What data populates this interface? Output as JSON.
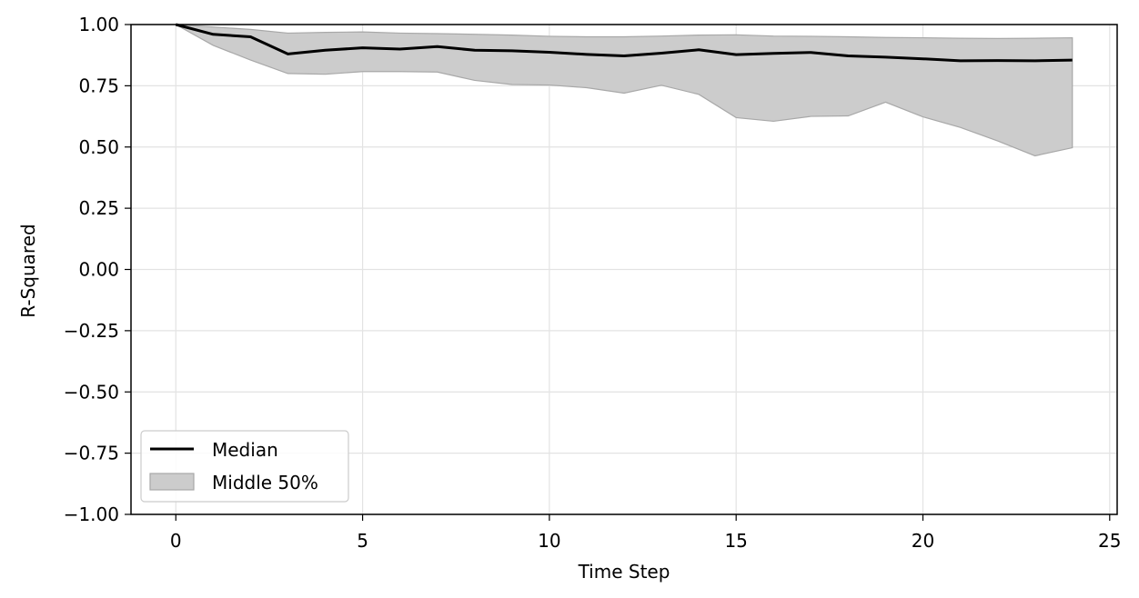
{
  "chart_data": {
    "type": "line",
    "title": "",
    "xlabel": "Time Step",
    "ylabel": "R-Squared",
    "xlim": [
      -1.2,
      25.2
    ],
    "ylim": [
      -1.0,
      1.0
    ],
    "xticks": [
      0,
      5,
      10,
      15,
      20,
      25
    ],
    "xtick_labels": [
      "0",
      "5",
      "10",
      "15",
      "20",
      "25"
    ],
    "yticks": [
      -1.0,
      -0.75,
      -0.5,
      -0.25,
      0.0,
      0.25,
      0.5,
      0.75,
      1.0
    ],
    "ytick_labels": [
      "−1.00",
      "−0.75",
      "−0.50",
      "−0.25",
      "0.00",
      "0.25",
      "0.50",
      "0.75",
      "1.00"
    ],
    "grid": true,
    "legend_position": "lower-left",
    "x": [
      0,
      1,
      2,
      3,
      4,
      5,
      6,
      7,
      8,
      9,
      10,
      11,
      12,
      13,
      14,
      15,
      16,
      17,
      18,
      19,
      20,
      21,
      22,
      23,
      24
    ],
    "series": [
      {
        "name": "Median",
        "kind": "line",
        "color": "#000000",
        "values": [
          1.0,
          0.96,
          0.95,
          0.88,
          0.895,
          0.905,
          0.9,
          0.91,
          0.895,
          0.893,
          0.887,
          0.878,
          0.872,
          0.883,
          0.897,
          0.877,
          0.882,
          0.886,
          0.872,
          0.867,
          0.86,
          0.852,
          0.853,
          0.852,
          0.855
        ]
      },
      {
        "name": "Middle 50%",
        "kind": "band",
        "color": "#cccccc",
        "upper": [
          1.0,
          0.99,
          0.98,
          0.965,
          0.968,
          0.97,
          0.965,
          0.963,
          0.96,
          0.957,
          0.952,
          0.95,
          0.95,
          0.953,
          0.957,
          0.958,
          0.953,
          0.952,
          0.95,
          0.947,
          0.946,
          0.944,
          0.943,
          0.944,
          0.946
        ],
        "lower": [
          1.0,
          0.915,
          0.855,
          0.8,
          0.797,
          0.808,
          0.808,
          0.806,
          0.772,
          0.755,
          0.753,
          0.742,
          0.72,
          0.752,
          0.715,
          0.62,
          0.605,
          0.625,
          0.627,
          0.683,
          0.623,
          0.58,
          0.525,
          0.464,
          0.497
        ]
      }
    ]
  }
}
